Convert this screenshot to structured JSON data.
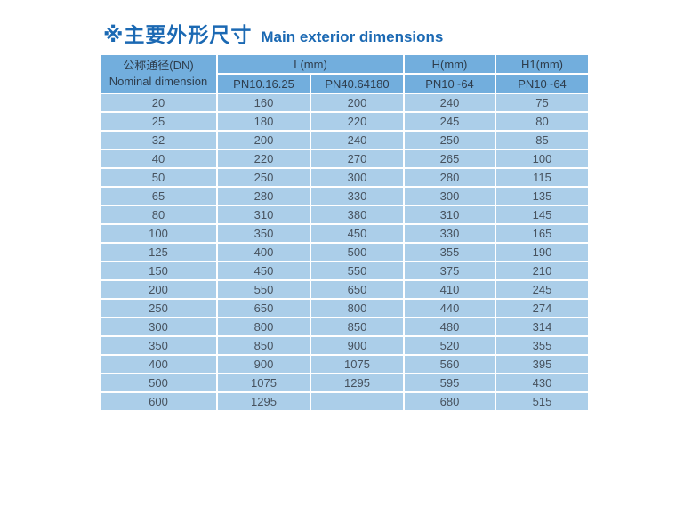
{
  "page": {
    "title_zh": "※主要外形尺寸",
    "title_en": "Main exterior dimensions"
  },
  "colors": {
    "title_blue": "#1b69b3",
    "header_bg": "#72aedd",
    "cell_bg": "#abcee9",
    "border": "#ffffff",
    "header_text": "#2e3d4c",
    "cell_text": "#47525e"
  },
  "table": {
    "header": {
      "dn_line1": "公称通径(DN)",
      "dn_line2": "Nominal dimension",
      "l_group": "L(mm)",
      "l_sub1": "PN10.16.25",
      "l_sub2": "PN40.64180",
      "h_group": "H(mm)",
      "h_sub": "PN10~64",
      "h1_group": "H1(mm)",
      "h1_sub": "PN10~64"
    },
    "rows": [
      [
        "20",
        "160",
        "200",
        "240",
        "75"
      ],
      [
        "25",
        "180",
        "220",
        "245",
        "80"
      ],
      [
        "32",
        "200",
        "240",
        "250",
        "85"
      ],
      [
        "40",
        "220",
        "270",
        "265",
        "100"
      ],
      [
        "50",
        "250",
        "300",
        "280",
        "115"
      ],
      [
        "65",
        "280",
        "330",
        "300",
        "135"
      ],
      [
        "80",
        "310",
        "380",
        "310",
        "145"
      ],
      [
        "100",
        "350",
        "450",
        "330",
        "165"
      ],
      [
        "125",
        "400",
        "500",
        "355",
        "190"
      ],
      [
        "150",
        "450",
        "550",
        "375",
        "210"
      ],
      [
        "200",
        "550",
        "650",
        "410",
        "245"
      ],
      [
        "250",
        "650",
        "800",
        "440",
        "274"
      ],
      [
        "300",
        "800",
        "850",
        "480",
        "314"
      ],
      [
        "350",
        "850",
        "900",
        "520",
        "355"
      ],
      [
        "400",
        "900",
        "1075",
        "560",
        "395"
      ],
      [
        "500",
        "1075",
        "1295",
        "595",
        "430"
      ],
      [
        "600",
        "1295",
        "",
        "680",
        "515"
      ]
    ]
  }
}
